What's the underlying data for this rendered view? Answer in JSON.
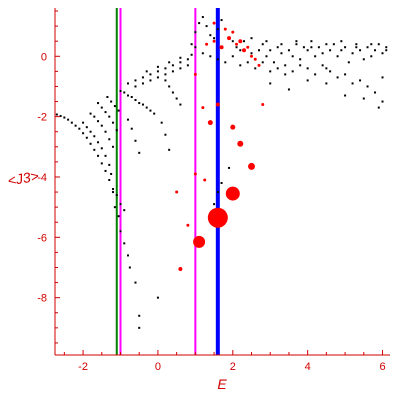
{
  "chart_data": {
    "type": "scatter",
    "title": "",
    "xlabel": "E",
    "ylabel": "<J3>",
    "xlim": [
      -2.75,
      6.2
    ],
    "ylim": [
      -9.9,
      1.6
    ],
    "xticks": [
      -2,
      0,
      2,
      4,
      6
    ],
    "yticks": [
      0,
      -2,
      -4,
      -6,
      -8
    ],
    "grid": false,
    "colors": {
      "axis": "#d00000",
      "tick_label": "#d00000",
      "black_points": "#000000",
      "red_points": "#ff0000"
    },
    "vertical_lines": [
      {
        "x": -1.1,
        "color": "#008000"
      },
      {
        "x": -1.0,
        "color": "#ff00ff"
      },
      {
        "x": 1.0,
        "color": "#ff00ff"
      },
      {
        "x": 1.6,
        "color": "#0000ff"
      }
    ],
    "series": [
      {
        "color": "#000000",
        "points": [
          [
            -2.7,
            -1.93
          ],
          [
            -2.6,
            -1.98
          ],
          [
            -2.5,
            -2.03
          ],
          [
            -2.4,
            -2.1
          ],
          [
            -2.3,
            -2.2
          ],
          [
            -2.2,
            -2.3
          ],
          [
            -2.1,
            -2.4
          ],
          [
            -2.0,
            -2.55
          ],
          [
            -1.9,
            -2.7
          ],
          [
            -1.8,
            -2.9
          ],
          [
            -1.7,
            -3.1
          ],
          [
            -1.6,
            -3.3
          ],
          [
            -1.5,
            -3.55
          ],
          [
            -1.4,
            -3.8
          ],
          [
            -1.3,
            -4.1
          ],
          [
            -1.2,
            -4.5
          ],
          [
            -1.15,
            -5.0
          ],
          [
            -2.0,
            -2.2
          ],
          [
            -1.9,
            -2.35
          ],
          [
            -1.8,
            -2.5
          ],
          [
            -1.7,
            -2.65
          ],
          [
            -1.6,
            -2.85
          ],
          [
            -1.5,
            -3.05
          ],
          [
            -1.4,
            -3.3
          ],
          [
            -1.3,
            -3.6
          ],
          [
            -1.25,
            -3.9
          ],
          [
            -1.8,
            -1.9
          ],
          [
            -1.7,
            -2.0
          ],
          [
            -1.6,
            -2.15
          ],
          [
            -1.5,
            -2.3
          ],
          [
            -1.4,
            -2.5
          ],
          [
            -1.3,
            -2.75
          ],
          [
            -1.2,
            -3.0
          ],
          [
            -1.6,
            -1.55
          ],
          [
            -1.5,
            -1.7
          ],
          [
            -1.4,
            -1.85
          ],
          [
            -1.3,
            -2.0
          ],
          [
            -1.2,
            -2.2
          ],
          [
            -1.1,
            -2.45
          ],
          [
            -1.35,
            -1.35
          ],
          [
            -1.25,
            -1.5
          ],
          [
            -1.15,
            -1.65
          ],
          [
            -1.05,
            -1.8
          ],
          [
            -1.0,
            -1.15
          ],
          [
            -0.9,
            -1.2
          ],
          [
            -0.8,
            -1.3
          ],
          [
            -0.7,
            -1.35
          ],
          [
            -0.6,
            -1.45
          ],
          [
            -0.5,
            -1.55
          ],
          [
            -0.4,
            -1.6
          ],
          [
            -0.3,
            -1.7
          ],
          [
            -0.2,
            -1.8
          ],
          [
            -0.1,
            -1.9
          ],
          [
            -0.8,
            -0.9
          ],
          [
            -0.6,
            -0.8
          ],
          [
            -0.4,
            -0.7
          ],
          [
            -0.2,
            -0.6
          ],
          [
            0.0,
            -0.5
          ],
          [
            0.2,
            -0.4
          ],
          [
            0.4,
            -0.3
          ],
          [
            0.6,
            -0.2
          ],
          [
            0.8,
            -0.1
          ],
          [
            -0.6,
            -1.0
          ],
          [
            -0.4,
            -0.9
          ],
          [
            -0.2,
            -0.8
          ],
          [
            0.0,
            -0.7
          ],
          [
            0.2,
            -0.6
          ],
          [
            0.4,
            -0.5
          ],
          [
            0.6,
            -0.4
          ],
          [
            0.8,
            -0.3
          ],
          [
            -0.3,
            -0.5
          ],
          [
            0.0,
            -0.35
          ],
          [
            0.3,
            -0.2
          ],
          [
            0.6,
            -0.05
          ],
          [
            0.9,
            0.05
          ],
          [
            0.2,
            -0.8
          ],
          [
            0.3,
            -1.0
          ],
          [
            0.4,
            -1.2
          ],
          [
            0.5,
            -1.4
          ],
          [
            0.6,
            -1.6
          ],
          [
            -0.8,
            -2.1
          ],
          [
            -0.7,
            -2.4
          ],
          [
            -0.6,
            -2.8
          ],
          [
            -0.5,
            -3.2
          ],
          [
            0.1,
            -2.2
          ],
          [
            0.2,
            -2.6
          ],
          [
            0.3,
            -3.1
          ],
          [
            -1.05,
            -5.3
          ],
          [
            -1.0,
            -5.8
          ],
          [
            -0.9,
            -6.2
          ],
          [
            -0.8,
            -6.6
          ],
          [
            -0.75,
            -7.0
          ],
          [
            -0.6,
            -7.5
          ],
          [
            -0.5,
            -8.6
          ],
          [
            -0.5,
            -9.0
          ],
          [
            0.0,
            -8.0
          ],
          [
            -1.2,
            -4.4
          ],
          [
            -1.1,
            -4.6
          ],
          [
            -1.0,
            -4.9
          ],
          [
            -0.9,
            -5.1
          ],
          [
            0.9,
            0.4
          ],
          [
            1.0,
            0.8
          ],
          [
            1.1,
            1.1
          ],
          [
            1.2,
            1.3
          ],
          [
            1.3,
            1.0
          ],
          [
            1.4,
            0.7
          ],
          [
            1.5,
            0.6
          ],
          [
            1.6,
            0.9
          ],
          [
            1.7,
            1.2
          ],
          [
            1.8,
            0.9
          ],
          [
            1.9,
            0.6
          ],
          [
            2.0,
            0.5
          ],
          [
            2.1,
            0.3
          ],
          [
            2.2,
            0.2
          ],
          [
            2.3,
            0.5
          ],
          [
            2.4,
            0.3
          ],
          [
            2.5,
            0.1
          ],
          [
            2.6,
            -0.1
          ],
          [
            2.7,
            0.2
          ],
          [
            2.8,
            0.4
          ],
          [
            2.9,
            0.0
          ],
          [
            3.0,
            0.2
          ],
          [
            3.1,
            -0.2
          ],
          [
            3.2,
            0.3
          ],
          [
            3.3,
            0.1
          ],
          [
            3.4,
            -0.3
          ],
          [
            3.5,
            0.2
          ],
          [
            3.6,
            0.0
          ],
          [
            3.7,
            0.4
          ],
          [
            3.8,
            -0.1
          ],
          [
            3.9,
            0.3
          ],
          [
            4.0,
            0.2
          ],
          [
            4.1,
            0.5
          ],
          [
            4.2,
            0.0
          ],
          [
            4.3,
            0.3
          ],
          [
            4.4,
            0.1
          ],
          [
            4.5,
            -0.4
          ],
          [
            4.6,
            0.2
          ],
          [
            4.7,
            0.4
          ],
          [
            4.8,
            0.0
          ],
          [
            4.9,
            0.2
          ],
          [
            5.0,
            0.3
          ],
          [
            5.1,
            -0.2
          ],
          [
            5.2,
            0.1
          ],
          [
            5.3,
            0.4
          ],
          [
            5.4,
            0.2
          ],
          [
            5.5,
            -0.1
          ],
          [
            5.6,
            0.3
          ],
          [
            5.7,
            0.0
          ],
          [
            5.8,
            0.2
          ],
          [
            5.9,
            0.4
          ],
          [
            6.0,
            0.1
          ],
          [
            6.1,
            0.3
          ],
          [
            1.0,
            0.3
          ],
          [
            1.2,
            0.1
          ],
          [
            1.4,
            0.0
          ],
          [
            1.6,
            -0.1
          ],
          [
            1.8,
            -0.2
          ],
          [
            2.0,
            0.0
          ],
          [
            2.2,
            -0.3
          ],
          [
            2.4,
            -0.2
          ],
          [
            2.6,
            -0.4
          ],
          [
            2.8,
            -0.2
          ],
          [
            3.0,
            -0.5
          ],
          [
            3.2,
            -0.4
          ],
          [
            3.4,
            -0.6
          ],
          [
            3.6,
            -0.5
          ],
          [
            3.8,
            -0.3
          ],
          [
            4.0,
            -0.4
          ],
          [
            4.2,
            -0.6
          ],
          [
            4.4,
            -0.3
          ],
          [
            4.6,
            -0.5
          ],
          [
            4.8,
            -0.7
          ],
          [
            5.0,
            -0.6
          ],
          [
            5.2,
            -0.9
          ],
          [
            5.4,
            -0.8
          ],
          [
            5.6,
            -1.0
          ],
          [
            5.8,
            -1.2
          ],
          [
            6.0,
            -0.7
          ],
          [
            2.5,
            0.6
          ],
          [
            2.9,
            0.5
          ],
          [
            3.3,
            0.4
          ],
          [
            3.7,
            0.5
          ],
          [
            4.1,
            0.3
          ],
          [
            4.5,
            0.4
          ],
          [
            4.9,
            0.5
          ],
          [
            5.3,
            0.3
          ],
          [
            5.7,
            0.4
          ],
          [
            6.1,
            0.2
          ],
          [
            3.0,
            -0.9
          ],
          [
            3.5,
            -1.1
          ],
          [
            4.0,
            -0.8
          ],
          [
            4.5,
            -0.9
          ],
          [
            5.0,
            -1.3
          ],
          [
            5.5,
            -1.4
          ],
          [
            6.0,
            -1.5
          ],
          [
            5.9,
            -1.7
          ],
          [
            1.9,
            -3.7
          ],
          [
            1.7,
            -4.2
          ],
          [
            1.6,
            -4.5
          ],
          [
            1.5,
            -4.9
          ],
          [
            1.4,
            -5.2
          ]
        ]
      },
      {
        "color": "#ff0000",
        "points": [
          [
            1.6,
            -5.35,
            10
          ],
          [
            2.0,
            -4.55,
            7
          ],
          [
            1.1,
            -6.15,
            6
          ],
          [
            2.5,
            -3.65,
            3.5
          ],
          [
            2.2,
            -2.9,
            3
          ],
          [
            2.0,
            -2.35,
            2.5
          ],
          [
            1.4,
            -2.2,
            2.5
          ],
          [
            1.6,
            -1.6,
            2
          ],
          [
            1.2,
            -1.7,
            1.5
          ],
          [
            1.25,
            -4.1,
            1.5
          ],
          [
            1.0,
            -3.9,
            1.5
          ],
          [
            0.8,
            -5.6,
            1.5
          ],
          [
            0.6,
            -7.05,
            2
          ],
          [
            0.5,
            -4.5,
            1.5
          ],
          [
            1.3,
            0.4,
            1.5
          ],
          [
            1.5,
            0.5,
            1.5
          ],
          [
            1.7,
            0.3,
            2
          ],
          [
            1.9,
            0.6,
            2
          ],
          [
            2.1,
            0.4,
            1.5
          ],
          [
            2.3,
            0.2,
            2
          ],
          [
            2.5,
            0.0,
            1.5
          ],
          [
            2.7,
            -0.3,
            1.5
          ],
          [
            2.2,
            0.5,
            2
          ],
          [
            2.0,
            0.8,
            1.5
          ],
          [
            1.8,
            0.9,
            1.5
          ],
          [
            1.5,
            1.1,
            1.5
          ],
          [
            2.4,
            0.3,
            1.5
          ],
          [
            2.6,
            -0.1,
            1.5
          ],
          [
            2.8,
            -1.6,
            1.5
          ],
          [
            1.0,
            -0.6,
            1.5
          ]
        ]
      }
    ]
  }
}
